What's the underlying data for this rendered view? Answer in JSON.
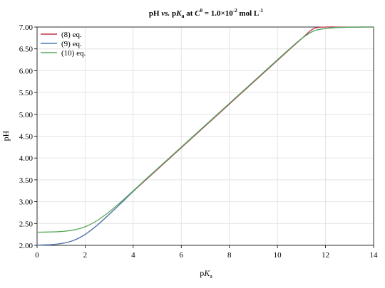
{
  "chart_data": {
    "type": "line",
    "title_parts": {
      "pH": "pH",
      "vs": "vs.",
      "p": "p",
      "K": "K",
      "a_sub": "a",
      "at": "at",
      "C": "C",
      "zero_sup": "0",
      "eq": "= 1.0×10",
      "exp": "-2",
      "unit": "mol L",
      "unit_exp": "-1"
    },
    "xlabel_parts": {
      "p": "p",
      "K": "K",
      "sub": "a"
    },
    "ylabel": "pH",
    "xlim": [
      0,
      14
    ],
    "ylim": [
      2.0,
      7.0
    ],
    "x_ticks": [
      "0",
      "2",
      "4",
      "6",
      "8",
      "10",
      "12",
      "14"
    ],
    "y_ticks": [
      "2.00",
      "2.50",
      "3.00",
      "3.50",
      "4.00",
      "4.50",
      "5.00",
      "5.50",
      "6.00",
      "6.50",
      "7.00"
    ],
    "grid": true,
    "legend_position": "top-left",
    "series": [
      {
        "name": "(8) eq.",
        "color": "#c0304a",
        "x": [
          0,
          0.5,
          1,
          1.5,
          2,
          2.5,
          3,
          3.5,
          4,
          4.5,
          5,
          5.5,
          6,
          6.5,
          7,
          7.5,
          8,
          8.5,
          9,
          9.5,
          10,
          10.5,
          11,
          11.5,
          12,
          12.5,
          13,
          13.5,
          14
        ],
        "y": [
          2.004,
          2.013,
          2.04,
          2.109,
          2.25,
          2.461,
          2.708,
          2.969,
          3.236,
          3.485,
          3.735,
          3.985,
          4.235,
          4.485,
          4.735,
          4.985,
          5.235,
          5.485,
          5.735,
          5.985,
          6.235,
          6.484,
          6.73,
          6.962,
          7.0,
          7.0,
          7.0,
          7.0,
          7.0
        ]
      },
      {
        "name": "(9) eq.",
        "color": "#4a7fb5",
        "x": [
          0,
          0.5,
          1,
          1.5,
          2,
          2.5,
          3,
          3.5,
          4,
          4.5,
          5,
          5.5,
          6,
          6.5,
          7,
          7.5,
          8,
          8.5,
          9,
          9.5,
          10,
          10.5,
          11,
          11.5,
          12,
          12.5,
          13,
          13.5,
          14
        ],
        "y": [
          2.004,
          2.013,
          2.04,
          2.109,
          2.25,
          2.461,
          2.708,
          2.969,
          3.236,
          3.502,
          3.751,
          4.0,
          4.25,
          4.5,
          4.75,
          5.0,
          5.25,
          5.5,
          5.75,
          6.0,
          6.25,
          6.497,
          6.733,
          6.908,
          6.966,
          6.989,
          6.996,
          6.999,
          7.0
        ]
      },
      {
        "name": "(10) eq.",
        "color": "#5aa85a",
        "x": [
          0,
          0.5,
          1,
          1.5,
          2,
          2.5,
          3,
          3.5,
          4,
          4.5,
          5,
          5.5,
          6,
          6.5,
          7,
          7.5,
          8,
          8.5,
          9,
          9.5,
          10,
          10.5,
          11,
          11.5,
          12,
          12.5,
          13,
          13.5,
          14
        ],
        "y": [
          2.301,
          2.306,
          2.317,
          2.349,
          2.426,
          2.568,
          2.767,
          3.0,
          3.25,
          3.5,
          3.75,
          4.0,
          4.25,
          4.5,
          4.75,
          5.0,
          5.25,
          5.5,
          5.75,
          6.0,
          6.25,
          6.497,
          6.733,
          6.908,
          6.966,
          6.989,
          6.996,
          6.999,
          7.0
        ]
      }
    ]
  }
}
